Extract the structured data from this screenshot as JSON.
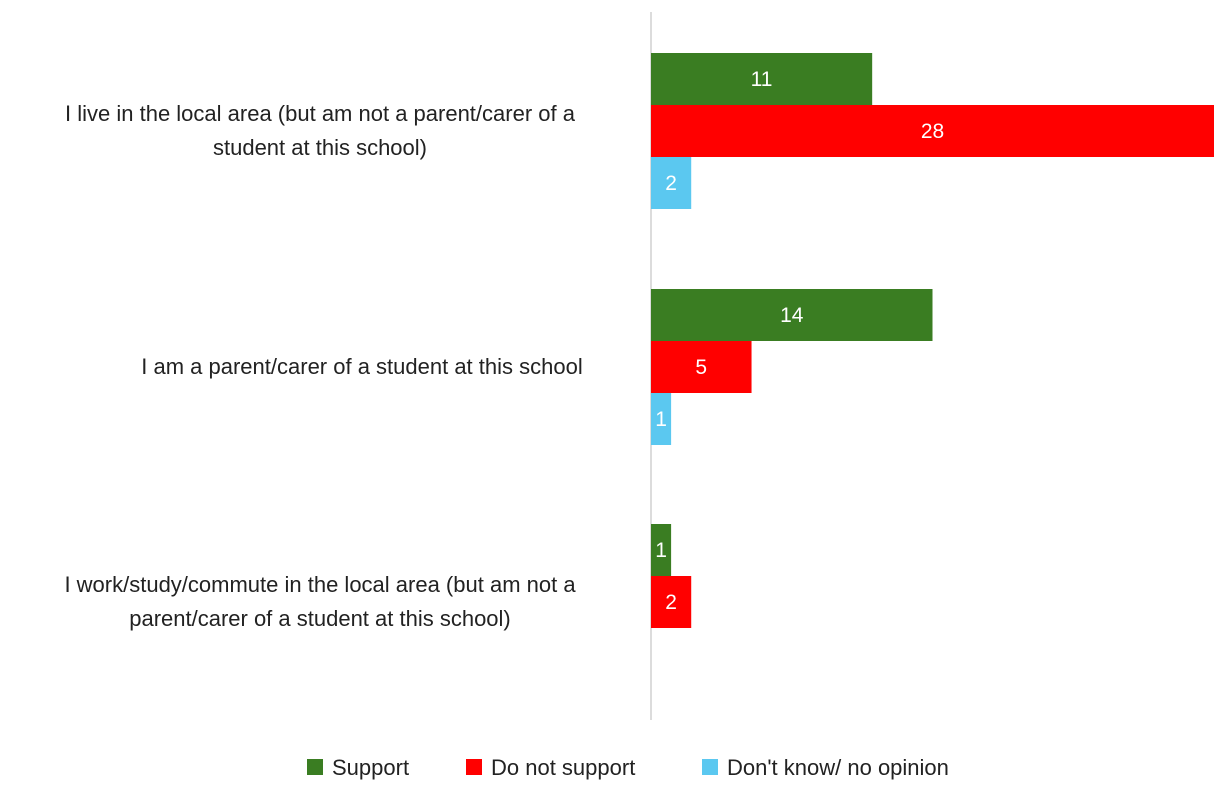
{
  "chart_data": {
    "type": "bar",
    "orientation": "horizontal",
    "categories": [
      [
        "I live in the local area (but am not a parent/carer of a",
        "student at this school)"
      ],
      [
        "I am a parent/carer of a student at this school"
      ],
      [
        "I work/study/commute in the local area (but am not a",
        "parent/carer of a student at this school)"
      ]
    ],
    "series": [
      {
        "name": "Support",
        "color": "#3a7d22",
        "values": [
          11,
          14,
          1
        ]
      },
      {
        "name": "Do not support",
        "color": "#ff0000",
        "values": [
          28,
          5,
          2
        ]
      },
      {
        "name": "Don't know/ no opinion",
        "color": "#5bc8f0",
        "values": [
          2,
          1,
          null
        ]
      }
    ],
    "xlim": [
      0,
      28
    ],
    "grid": false,
    "legend_position": "bottom"
  }
}
